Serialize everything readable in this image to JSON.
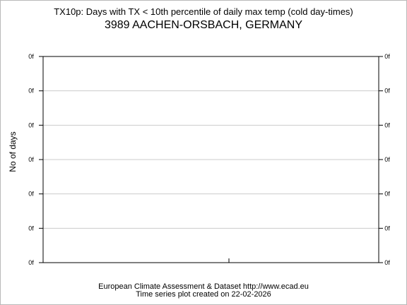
{
  "chart_data": {
    "type": "line",
    "title": "TX10p: Days with TX < 10th percentile of daily max temp (cold day-times)",
    "subtitle": "3989 AACHEN-ORSBACH, GERMANY",
    "xlabel": "",
    "ylabel": "No of days",
    "y_tick_labels": [
      "0f",
      "0f",
      "0f",
      "0f",
      "0f",
      "0f",
      "0f"
    ],
    "x_tick_labels": [],
    "series": [],
    "grid": true,
    "grid_color": "#cccccc"
  },
  "footer": {
    "line1": "European Climate Assessment & Dataset  http://www.ecad.eu",
    "line2": "Time series plot created on 22-02-2026"
  }
}
